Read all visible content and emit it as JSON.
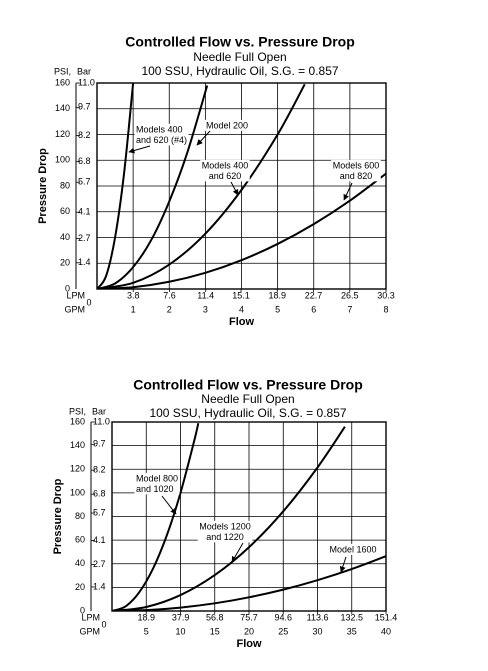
{
  "chart_data": [
    {
      "type": "line",
      "title": "Controlled Flow vs. Pressure Drop",
      "subtitle": [
        "Needle Full Open",
        "100 SSU, Hydraulic Oil, S.G. = 0.857"
      ],
      "y_label": "Pressure Drop",
      "y_unit": "PSI,",
      "y2_unit": "Bar",
      "x_label": "Flow",
      "x_unit": "GPM",
      "x2_unit": "LPM",
      "xlim": [
        0,
        8
      ],
      "xticks": [
        0,
        1,
        2,
        3,
        4,
        5,
        6,
        7,
        8
      ],
      "x2lim": [
        0,
        30.3
      ],
      "x2ticks": [
        3.8,
        7.6,
        11.4,
        15.1,
        18.9,
        22.7,
        26.5,
        30.3
      ],
      "ylim": [
        0,
        160
      ],
      "yticks": [
        0,
        20,
        40,
        60,
        80,
        100,
        120,
        140,
        160
      ],
      "y2lim": [
        0,
        11
      ],
      "y2ticks": [
        1.4,
        2.7,
        4.1,
        5.7,
        6.8,
        8.2,
        9.7,
        {
          "value": 11,
          "label": "11.0"
        }
      ],
      "grid": true,
      "series": [
        {
          "name": [
            "Models 400",
            "and 620 (#4)"
          ],
          "color": "#000000",
          "x": [
            0,
            0.25,
            0.5,
            0.75,
            1.0
          ],
          "values": [
            0,
            10,
            40,
            90,
            160
          ]
        },
        {
          "name": [
            "Model 200"
          ],
          "color": "#000000",
          "x": [
            0,
            0.5,
            1,
            1.5,
            2,
            2.5,
            3.05
          ],
          "values": [
            0,
            4.3,
            17,
            38,
            68,
            106,
            158
          ]
        },
        {
          "name": [
            "Models 400",
            "and 620"
          ],
          "color": "#000000",
          "x": [
            0,
            1,
            2,
            3,
            4,
            5,
            5.75
          ],
          "values": [
            0,
            4.8,
            19,
            43,
            77,
            120,
            159
          ]
        },
        {
          "name": [
            "Models 600",
            "and 820"
          ],
          "color": "#000000",
          "x": [
            0,
            1,
            2,
            3,
            4,
            5,
            6,
            7,
            8
          ],
          "values": [
            0,
            1.4,
            5.6,
            12.6,
            22.4,
            35,
            50.4,
            68.6,
            89.6
          ]
        }
      ]
    },
    {
      "type": "line",
      "title": "Controlled Flow vs. Pressure Drop",
      "subtitle": [
        "Needle Full Open",
        "100 SSU, Hydraulic Oil, S.G. = 0.857"
      ],
      "y_label": "Pressure Drop",
      "y_unit": "PSI,",
      "y2_unit": "Bar",
      "x_label": "Flow",
      "x_unit": "GPM",
      "x2_unit": "LPM",
      "xlim": [
        0,
        40
      ],
      "xticks": [
        0,
        5,
        10,
        15,
        20,
        25,
        30,
        35,
        40
      ],
      "x2lim": [
        0,
        151.4
      ],
      "x2ticks": [
        18.9,
        37.9,
        56.8,
        75.7,
        94.6,
        113.6,
        132.5,
        151.4
      ],
      "ylim": [
        0,
        160
      ],
      "yticks": [
        0,
        20,
        40,
        60,
        80,
        100,
        120,
        140,
        160
      ],
      "y2lim": [
        0,
        11
      ],
      "y2ticks": [
        1.4,
        2.7,
        4.1,
        5.7,
        6.8,
        8.2,
        9.7,
        {
          "value": 11,
          "label": "11.0"
        }
      ],
      "grid": true,
      "series": [
        {
          "name": [
            "Model 800",
            "and 1020"
          ],
          "color": "#000000",
          "x": [
            0,
            2,
            4,
            6,
            8,
            10,
            12,
            12.6
          ],
          "values": [
            0,
            4,
            16,
            36,
            64,
            100,
            144,
            159
          ]
        },
        {
          "name": [
            "Models 1200",
            "and 1220"
          ],
          "color": "#000000",
          "x": [
            0,
            5,
            10,
            15,
            20,
            25,
            30,
            34
          ],
          "values": [
            0,
            3.4,
            13.5,
            30.4,
            54,
            84.4,
            121.5,
            156
          ]
        },
        {
          "name": [
            "Model 1600"
          ],
          "color": "#000000",
          "x": [
            0,
            5,
            10,
            15,
            20,
            25,
            30,
            35,
            40
          ],
          "values": [
            0,
            0.7,
            2.9,
            6.5,
            11.6,
            18.1,
            26.1,
            35.5,
            46.4
          ]
        }
      ]
    }
  ]
}
